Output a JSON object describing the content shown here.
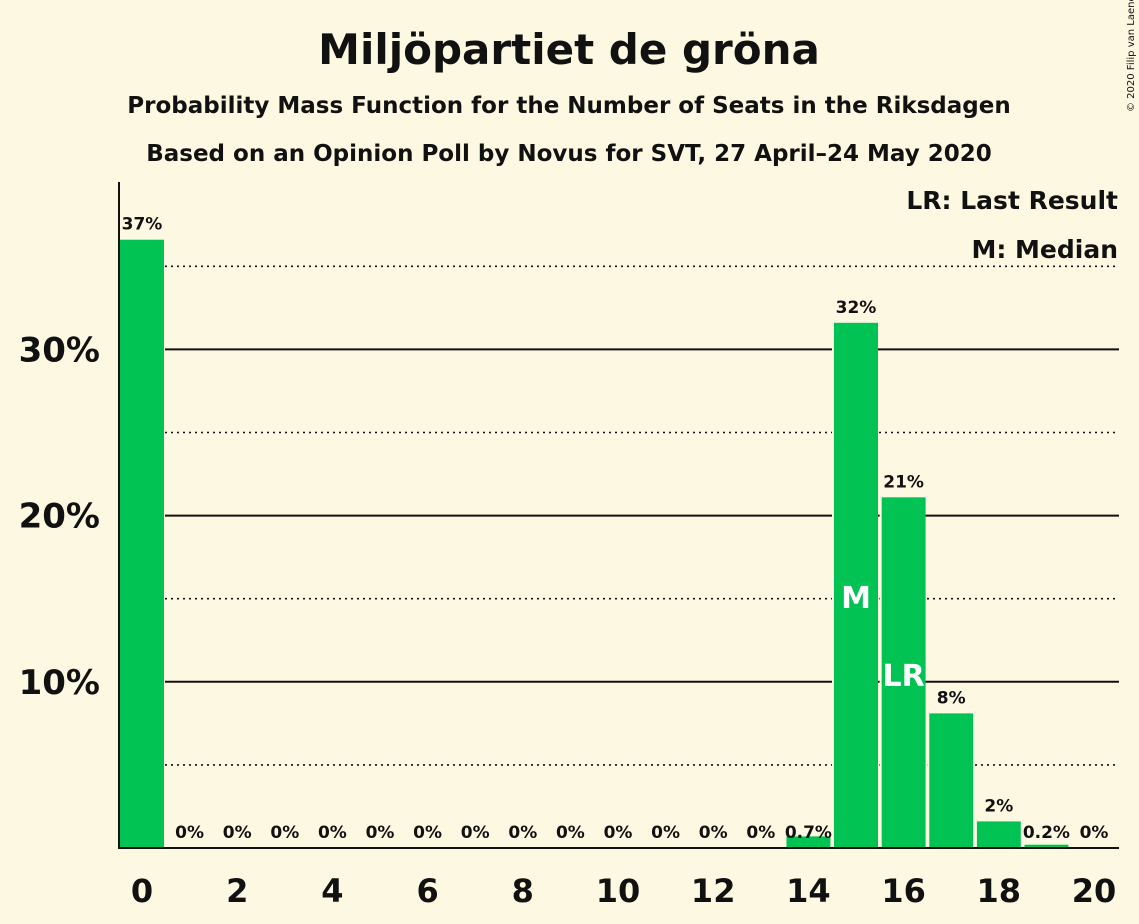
{
  "chart_data": {
    "type": "bar",
    "title": "Miljöpartiet de gröna",
    "subtitle": "Probability Mass Function for the Number of Seats in the Riksdagen",
    "subtitle2": "Based on an Opinion Poll by Novus for SVT, 27 April–24 May 2020",
    "copyright": "© 2020 Filip van Laenen",
    "legend": [
      "LR: Last Result",
      "M: Median"
    ],
    "x": [
      0,
      1,
      2,
      3,
      4,
      5,
      6,
      7,
      8,
      9,
      10,
      11,
      12,
      13,
      14,
      15,
      16,
      17,
      18,
      19,
      20
    ],
    "values": [
      36.6,
      0,
      0,
      0,
      0,
      0,
      0,
      0,
      0,
      0,
      0,
      0,
      0,
      0,
      0.7,
      31.6,
      21.1,
      8.1,
      1.6,
      0.2,
      0
    ],
    "data_labels": [
      "37%",
      "0%",
      "0%",
      "0%",
      "0%",
      "0%",
      "0%",
      "0%",
      "0%",
      "0%",
      "0%",
      "0%",
      "0%",
      "0%",
      "0.7%",
      "32%",
      "21%",
      "8%",
      "2%",
      "0.2%",
      "0%"
    ],
    "x_tick_labels": [
      "0",
      "2",
      "4",
      "6",
      "8",
      "10",
      "12",
      "14",
      "16",
      "18",
      "20"
    ],
    "y_tick_labels": [
      "10%",
      "20%",
      "30%"
    ],
    "y_ticks": [
      10,
      20,
      30
    ],
    "y_minor_ticks": [
      5,
      15,
      25,
      35
    ],
    "ylim": [
      0,
      40
    ],
    "median_seat": 15,
    "median_label": "M",
    "last_result_seat": 16,
    "last_result_label": "LR",
    "bar_color": "#00c353",
    "background": "#fdf8e2"
  }
}
